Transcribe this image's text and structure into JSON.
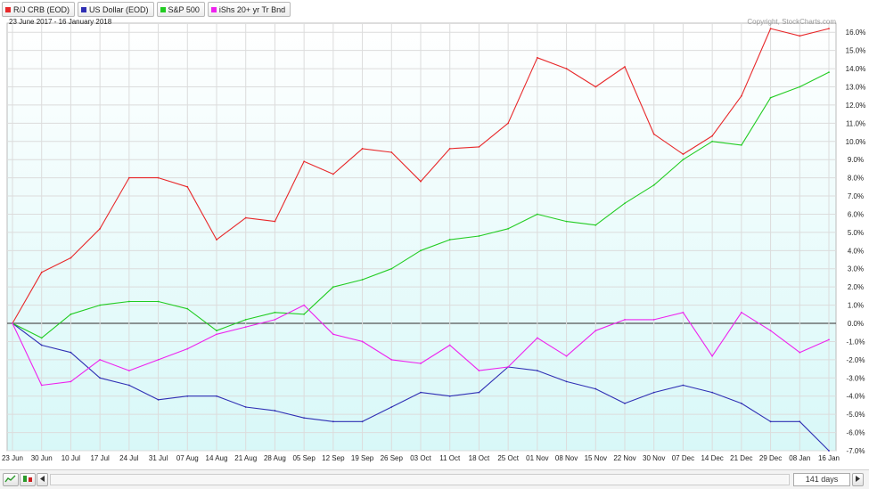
{
  "legend": [
    {
      "label": "R/J CRB (EOD)",
      "color": "#e8282a"
    },
    {
      "label": "US Dollar (EOD)",
      "color": "#2f2fb4"
    },
    {
      "label": "S&P 500",
      "color": "#22cc22"
    },
    {
      "label": "iShs 20+ yr Tr Bnd",
      "color": "#ee22ee"
    }
  ],
  "date_range": "23 June 2017 - 16 January 2018",
  "copyright": "Copyright, StockCharts.com",
  "toolbar": {
    "days_label": "141 days",
    "prev_icon": "triangle-left-icon",
    "next_icon": "triangle-right-icon"
  },
  "colors": {
    "background_top": "#ffffff",
    "background_bottom": "#d8f8f8",
    "zero_line": "#555555",
    "grid": "#dcdcdc"
  },
  "chart_data": {
    "type": "line",
    "x": [
      "23 Jun",
      "30 Jun",
      "10 Jul",
      "17 Jul",
      "24 Jul",
      "31 Jul",
      "07 Aug",
      "14 Aug",
      "21 Aug",
      "28 Aug",
      "05 Sep",
      "12 Sep",
      "19 Sep",
      "26 Sep",
      "03 Oct",
      "11 Oct",
      "18 Oct",
      "25 Oct",
      "01 Nov",
      "08 Nov",
      "15 Nov",
      "22 Nov",
      "30 Nov",
      "07 Dec",
      "14 Dec",
      "21 Dec",
      "29 Dec",
      "08 Jan",
      "16 Jan"
    ],
    "ylim": [
      -7.0,
      16.5
    ],
    "yticks": [
      "16.0%",
      "15.0%",
      "14.0%",
      "13.0%",
      "12.0%",
      "11.0%",
      "10.0%",
      "9.0%",
      "8.0%",
      "7.0%",
      "6.0%",
      "5.0%",
      "4.0%",
      "3.0%",
      "2.0%",
      "1.0%",
      "0.0%",
      "-1.0%",
      "-2.0%",
      "-3.0%",
      "-4.0%",
      "-5.0%",
      "-6.0%",
      "-7.0%"
    ],
    "ytick_values": [
      16,
      15,
      14,
      13,
      12,
      11,
      10,
      9,
      8,
      7,
      6,
      5,
      4,
      3,
      2,
      1,
      0,
      -1,
      -2,
      -3,
      -4,
      -5,
      -6,
      -7
    ],
    "series": [
      {
        "name": "R/J CRB (EOD)",
        "color": "#e8282a",
        "values": [
          0.0,
          2.8,
          3.6,
          5.2,
          8.0,
          8.0,
          7.5,
          4.6,
          5.8,
          5.6,
          8.9,
          8.2,
          9.6,
          9.4,
          7.8,
          9.6,
          9.7,
          11.0,
          14.6,
          14.0,
          13.0,
          14.1,
          10.4,
          9.3,
          10.3,
          12.5,
          16.2,
          15.8,
          16.2
        ]
      },
      {
        "name": "US Dollar (EOD)",
        "color": "#2f2fb4",
        "values": [
          0.0,
          -1.2,
          -1.6,
          -3.0,
          -3.4,
          -4.2,
          -4.0,
          -4.0,
          -4.6,
          -4.8,
          -5.2,
          -5.4,
          -5.4,
          -4.6,
          -3.8,
          -4.0,
          -3.8,
          -2.4,
          -2.6,
          -3.2,
          -3.6,
          -4.4,
          -3.8,
          -3.4,
          -3.8,
          -4.4,
          -5.4,
          -5.4,
          -7.0
        ]
      },
      {
        "name": "S&P 500",
        "color": "#22cc22",
        "values": [
          0.0,
          -0.8,
          0.5,
          1.0,
          1.2,
          1.2,
          0.8,
          -0.4,
          0.2,
          0.6,
          0.5,
          2.0,
          2.4,
          3.0,
          4.0,
          4.6,
          4.8,
          5.2,
          6.0,
          5.6,
          5.4,
          6.6,
          7.6,
          9.0,
          10.0,
          9.8,
          12.4,
          13.0,
          13.8
        ]
      },
      {
        "name": "iShs 20+ yr Tr Bnd",
        "color": "#ee22ee",
        "values": [
          0.0,
          -3.4,
          -3.2,
          -2.0,
          -2.6,
          -2.0,
          -1.4,
          -0.6,
          -0.2,
          0.2,
          1.0,
          -0.6,
          -1.0,
          -2.0,
          -2.2,
          -1.2,
          -2.6,
          -2.4,
          -0.8,
          -1.8,
          -0.4,
          0.2,
          0.2,
          0.6,
          -1.8,
          0.6,
          -0.4,
          -1.6,
          -0.9
        ]
      }
    ]
  }
}
